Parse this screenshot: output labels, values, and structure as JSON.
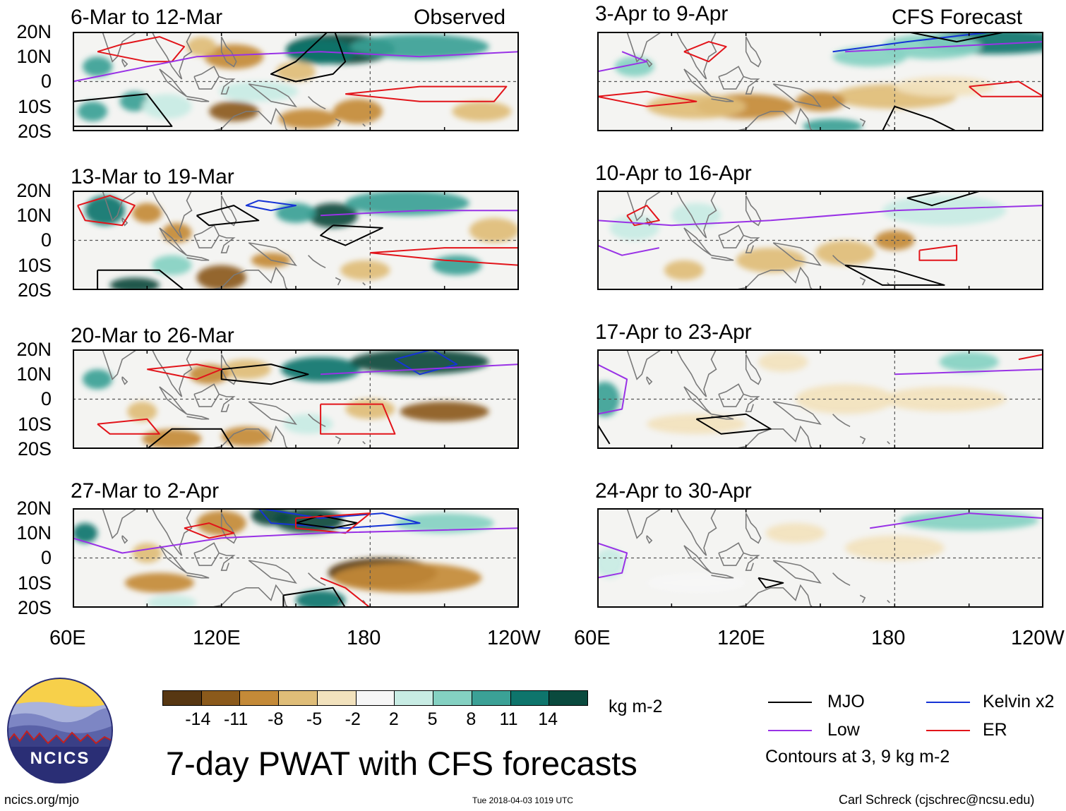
{
  "header": {
    "left_label": "Observed",
    "right_label": "CFS Forecast"
  },
  "panels": {
    "observed": [
      {
        "period": "6-Mar to 12-Mar"
      },
      {
        "period": "13-Mar to 19-Mar"
      },
      {
        "period": "20-Mar to 26-Mar"
      },
      {
        "period": "27-Mar to 2-Apr"
      }
    ],
    "forecast": [
      {
        "period": "3-Apr to 9-Apr"
      },
      {
        "period": "10-Apr to 16-Apr"
      },
      {
        "period": "17-Apr to 23-Apr"
      },
      {
        "period": "24-Apr to 30-Apr"
      }
    ]
  },
  "axes": {
    "lat_labels": [
      "20N",
      "10N",
      "0",
      "10S",
      "20S"
    ],
    "lon_labels": [
      "60E",
      "120E",
      "180",
      "120W"
    ],
    "lon_range_deg": [
      60,
      240
    ],
    "lat_range_deg": [
      -20,
      20
    ]
  },
  "colorbar": {
    "ticks": [
      "-14",
      "-11",
      "-8",
      "-5",
      "-2",
      "2",
      "5",
      "8",
      "11",
      "14"
    ],
    "units": "kg m-2",
    "colors": [
      "#573712",
      "#8b5a1b",
      "#c48a38",
      "#dfbd78",
      "#f2e2bd",
      "#f6f6f6",
      "#c8ece4",
      "#84d1c2",
      "#3ba196",
      "#0e756c",
      "#0a4a3e"
    ]
  },
  "legend": {
    "items": [
      {
        "label": "MJO",
        "color": "#000000"
      },
      {
        "label": "Kelvin x2",
        "color": "#1533d6"
      },
      {
        "label": "Low",
        "color": "#9932e6"
      },
      {
        "label": "ER",
        "color": "#e2141a"
      }
    ],
    "note": "Contours at 3, 9 kg m-2"
  },
  "footer": {
    "main_title": "7-day PWAT with CFS forecasts",
    "website": "ncics.org/mjo",
    "timestamp": "Tue 2018-04-03 1019 UTC",
    "author": "Carl Schreck (cjschrec@ncsu.edu)",
    "logo_text": "NCICS"
  }
}
